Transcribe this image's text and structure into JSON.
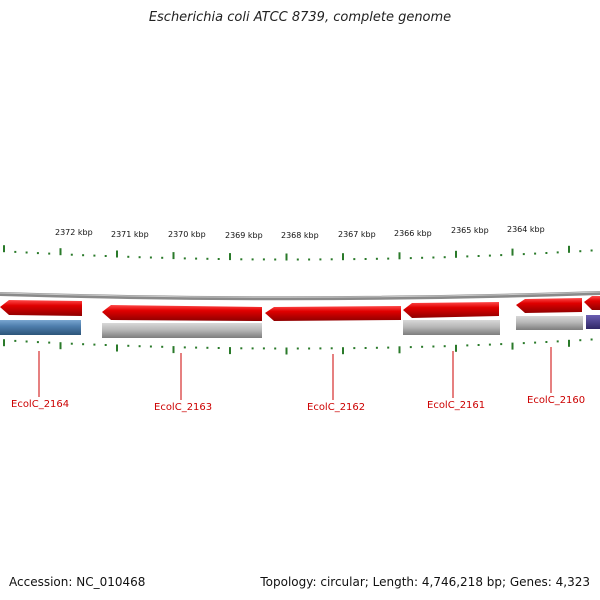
{
  "title": "Escherichia coli ATCC 8739, complete genome",
  "footer": {
    "accession": "Accession: NC_010468",
    "summary": "Topology: circular; Length: 4,746,218 bp; Genes: 4,323"
  },
  "kbp_labels": [
    {
      "text": "2372 kbp"
    },
    {
      "text": "2371 kbp"
    },
    {
      "text": "2370 kbp"
    },
    {
      "text": "2369 kbp"
    },
    {
      "text": "2368 kbp"
    },
    {
      "text": "2367 kbp"
    },
    {
      "text": "2366 kbp"
    },
    {
      "text": "2365 kbp"
    },
    {
      "text": "2364 kbp"
    }
  ],
  "genes": [
    {
      "label": "EcolC_2164"
    },
    {
      "label": "EcolC_2163"
    },
    {
      "label": "EcolC_2162"
    },
    {
      "label": "EcolC_2161"
    },
    {
      "label": "EcolC_2160"
    }
  ],
  "colors": {
    "gene_red": "#e00000",
    "label_red": "#cc0000",
    "tick_green": "#2a7a2a",
    "arc_gray": "#8a8a8a",
    "cog_blue": "#4f7fae",
    "cog_gray": "#b8b8b8",
    "cog_purple": "#4b3f8f"
  }
}
